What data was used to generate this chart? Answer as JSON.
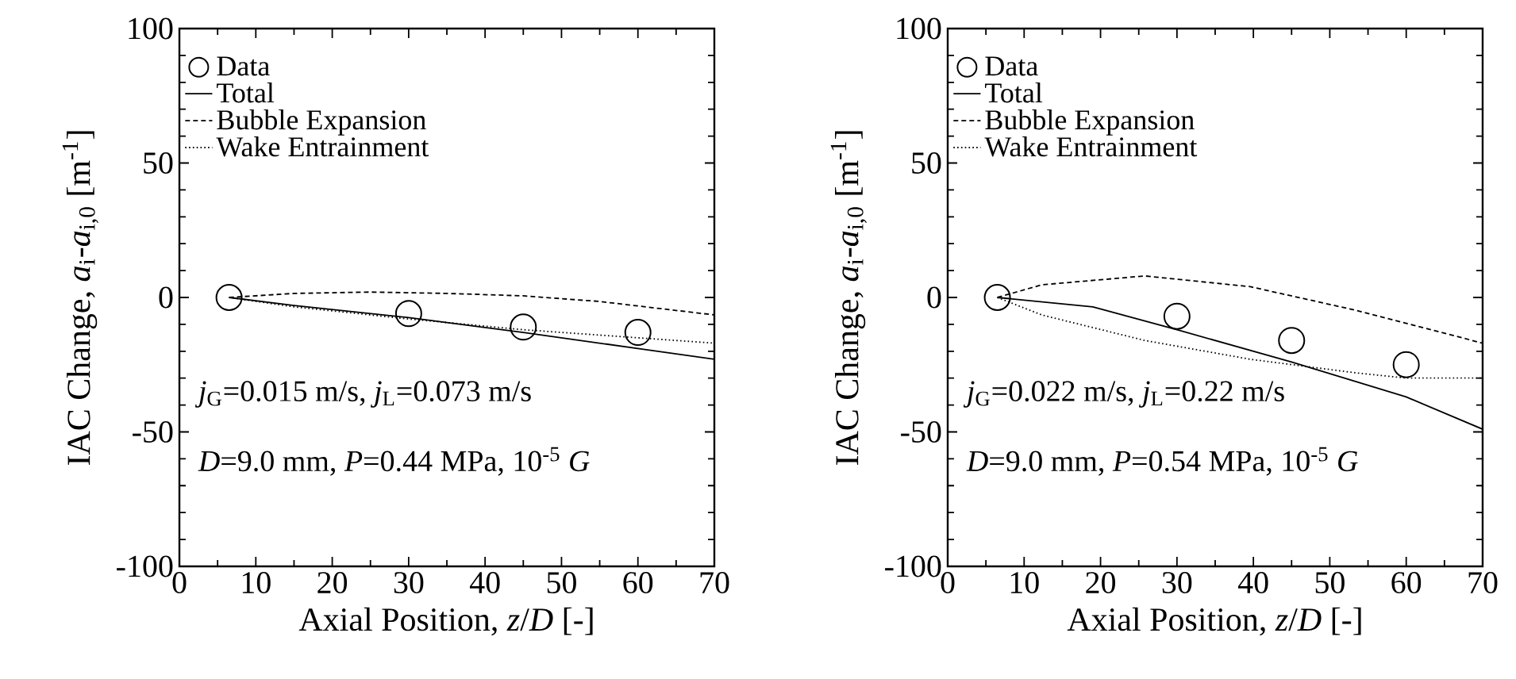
{
  "chart_data": [
    {
      "type": "line",
      "xlabel": "Axial Position,  *z*/*D*   [-]",
      "ylabel": "IAC Change,  *a*$_{i}$-*a*$_{i,0}$ [m$^{-1}$]",
      "xlim": [
        0,
        70
      ],
      "ylim": [
        -100,
        100
      ],
      "xticks": [
        0,
        10,
        20,
        30,
        40,
        50,
        60,
        70
      ],
      "yticks": [
        -100,
        -50,
        0,
        50,
        100
      ],
      "legend": "top left",
      "series": [
        {
          "name": "Data",
          "type": "scatter",
          "marker": "circle",
          "color": "#000000",
          "x": [
            6.5,
            30,
            45,
            60
          ],
          "values": [
            0,
            -6,
            -11,
            -13
          ]
        },
        {
          "name": "Total",
          "type": "line",
          "line_style": "solid",
          "color": "#000000",
          "x": [
            6.5,
            15,
            30,
            45,
            60,
            70
          ],
          "values": [
            0,
            -3,
            -7.5,
            -13,
            -19,
            -23
          ]
        },
        {
          "name": "Bubble Expansion",
          "type": "line",
          "line_style": "dashed",
          "color": "#000000",
          "x": [
            6.5,
            15,
            25,
            35,
            45,
            55,
            70
          ],
          "values": [
            0,
            1.5,
            2,
            1.5,
            0.6,
            -1.5,
            -6.5
          ]
        },
        {
          "name": "Wake Entrainment",
          "type": "line",
          "line_style": "dotted",
          "color": "#000000",
          "x": [
            6.5,
            15,
            30,
            45,
            60,
            70
          ],
          "values": [
            0,
            -3.5,
            -8,
            -12,
            -15,
            -17
          ]
        }
      ],
      "annotations": [
        "*j*$_{G}$=0.015 m/s, *j*$_{L}$=0.073 m/s",
        "*D*=9.0 mm, *P*=0.44 MPa, 10$^{-5}$ *G*"
      ]
    },
    {
      "type": "line",
      "xlabel": "Axial Position,  *z*/*D*   [-]",
      "ylabel": "IAC Change,  *a*$_{i}$-*a*$_{i,0}$ [m$^{-1}$]",
      "xlim": [
        0,
        70
      ],
      "ylim": [
        -100,
        100
      ],
      "xticks": [
        0,
        10,
        20,
        30,
        40,
        50,
        60,
        70
      ],
      "yticks": [
        -100,
        -50,
        0,
        50,
        100
      ],
      "legend": "top left",
      "series": [
        {
          "name": "Data",
          "type": "scatter",
          "marker": "circle",
          "color": "#000000",
          "x": [
            6.5,
            30,
            45,
            60
          ],
          "values": [
            0,
            -7,
            -16,
            -25
          ]
        },
        {
          "name": "Total",
          "type": "line",
          "line_style": "solid",
          "color": "#000000",
          "x": [
            6.5,
            19,
            30,
            45,
            60,
            70
          ],
          "values": [
            0,
            -3.5,
            -12,
            -24,
            -37,
            -49
          ]
        },
        {
          "name": "Bubble Expansion",
          "type": "line",
          "line_style": "dashed",
          "color": "#000000",
          "x": [
            6.5,
            12.3,
            25.8,
            39.6,
            53.3,
            70
          ],
          "values": [
            0,
            4.7,
            8,
            4,
            -4.7,
            -17
          ]
        },
        {
          "name": "Wake Entrainment",
          "type": "line",
          "line_style": "dotted",
          "color": "#000000",
          "x": [
            6.5,
            12.3,
            25.8,
            39.6,
            53.3,
            60,
            70
          ],
          "values": [
            0,
            -6.5,
            -16,
            -23,
            -28,
            -30,
            -30
          ]
        }
      ],
      "annotations": [
        "*j*$_{G}$=0.022 m/s, *j*$_{L}$=0.22 m/s",
        "*D*=9.0 mm, *P*=0.54 MPa, 10$^{-5}$ *G*"
      ]
    }
  ]
}
